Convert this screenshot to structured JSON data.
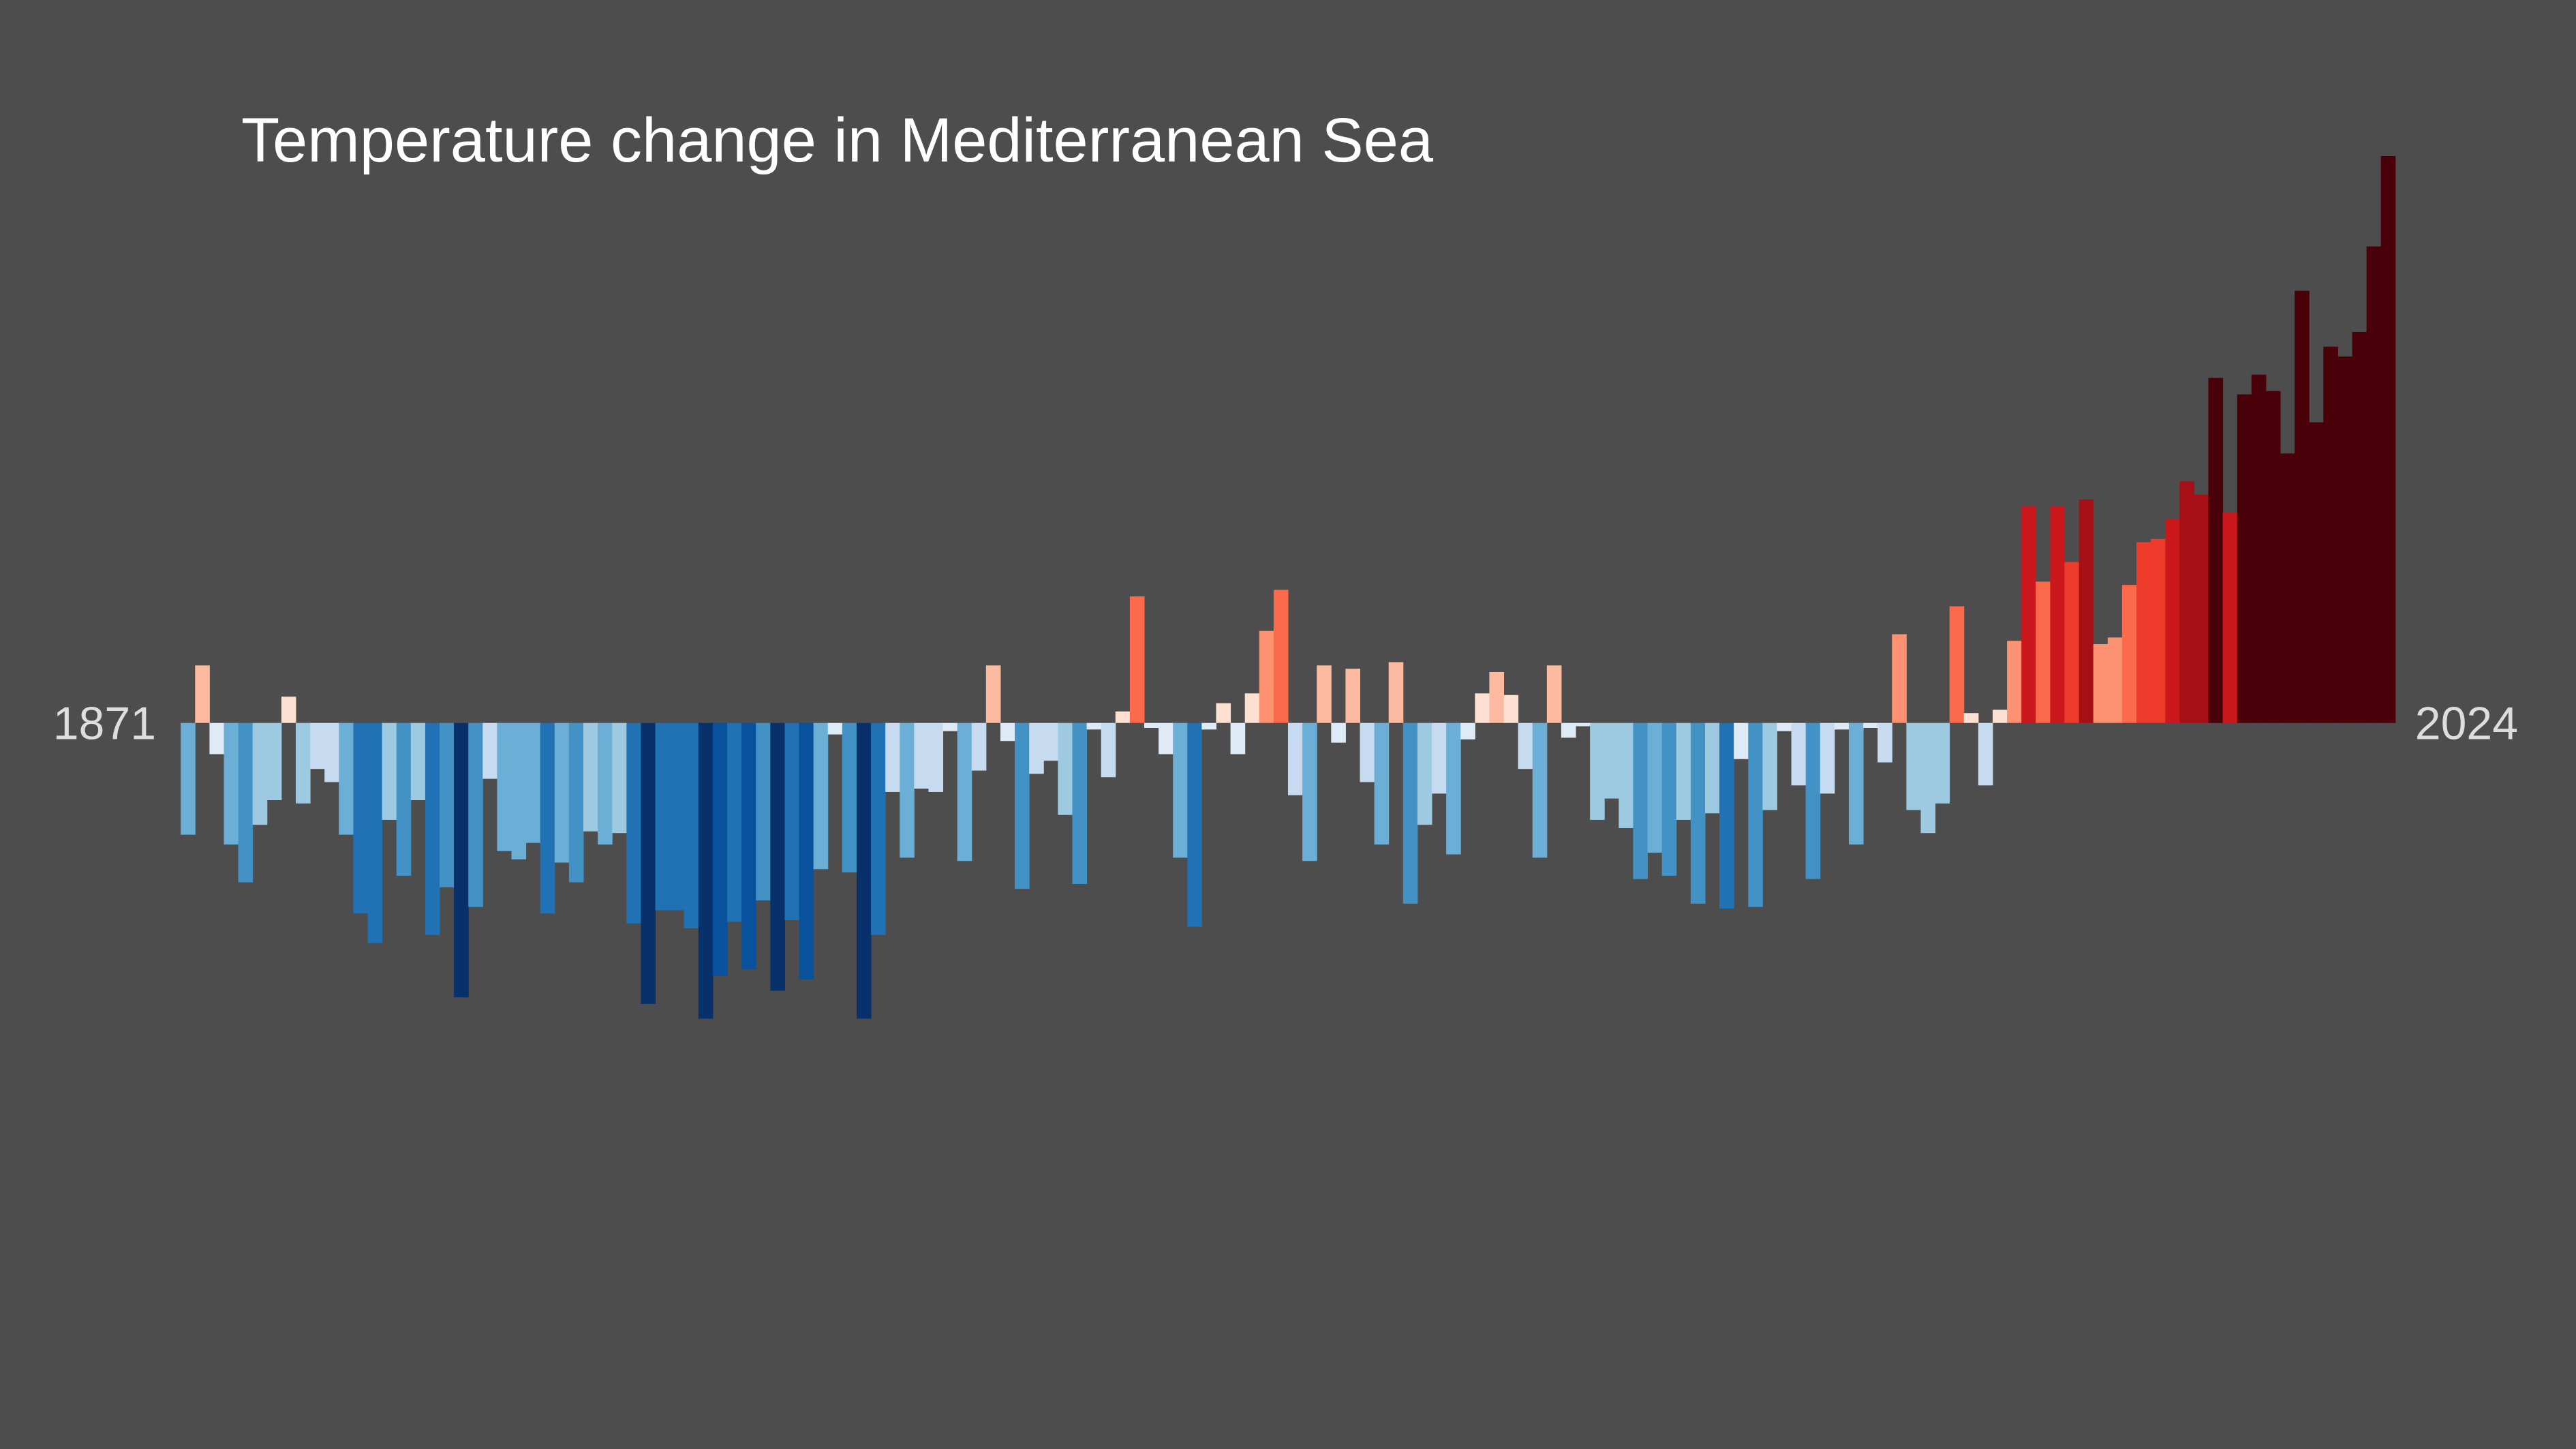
{
  "chart_data": {
    "type": "bar",
    "title": "Temperature change in Mediterranean Sea",
    "xlim": [
      1871,
      2024
    ],
    "xticks": [
      1871,
      2024
    ],
    "ylim": [
      -1.2,
      1.8
    ],
    "background": "#4d4d4d",
    "palette": [
      "#08306b",
      "#08519c",
      "#2171b5",
      "#4292c6",
      "#6baed6",
      "#9ecae1",
      "#c6dbef",
      "#deebf7",
      "#fee0d2",
      "#fcbba1",
      "#fc9272",
      "#fb6a4a",
      "#ef3b2c",
      "#cb181d",
      "#a50f15",
      "#4a0008"
    ],
    "values": [
      -0.34,
      0.175,
      -0.095,
      -0.37,
      -0.485,
      -0.31,
      -0.235,
      0.08,
      -0.245,
      -0.14,
      -0.18,
      -0.34,
      -0.58,
      -0.67,
      -0.295,
      -0.465,
      -0.235,
      -0.645,
      -0.5,
      -0.835,
      -0.56,
      -0.17,
      -0.39,
      -0.415,
      -0.365,
      -0.58,
      -0.425,
      -0.485,
      -0.33,
      -0.37,
      -0.335,
      -0.61,
      -0.855,
      -0.57,
      -0.57,
      -0.625,
      -0.9,
      -0.77,
      -0.605,
      -0.75,
      -0.54,
      -0.815,
      -0.6,
      -0.78,
      -0.445,
      -0.035,
      -0.455,
      -0.9,
      -0.645,
      -0.21,
      -0.41,
      -0.2,
      -0.21,
      -0.025,
      -0.42,
      -0.145,
      0.175,
      -0.055,
      -0.505,
      -0.155,
      -0.115,
      -0.28,
      -0.49,
      -0.02,
      -0.165,
      0.035,
      0.385,
      -0.015,
      -0.095,
      -0.41,
      -0.62,
      -0.02,
      0.06,
      -0.095,
      0.09,
      0.28,
      0.405,
      -0.22,
      -0.42,
      0.175,
      -0.06,
      0.165,
      -0.18,
      -0.37,
      0.185,
      -0.55,
      -0.31,
      -0.215,
      -0.4,
      -0.05,
      0.09,
      0.155,
      0.085,
      -0.14,
      -0.41,
      0.175,
      -0.045,
      -0.01,
      -0.295,
      -0.23,
      -0.32,
      -0.475,
      -0.395,
      -0.465,
      -0.295,
      -0.55,
      -0.275,
      -0.565,
      -0.11,
      -0.56,
      -0.265,
      -0.025,
      -0.19,
      -0.475,
      -0.215,
      -0.02,
      -0.37,
      -0.015,
      -0.12,
      0.27,
      -0.265,
      -0.335,
      -0.245,
      0.355,
      0.03,
      -0.19,
      0.04,
      0.25,
      0.66,
      0.43,
      0.66,
      0.49,
      0.68,
      0.24,
      0.26,
      0.42,
      0.55,
      0.56,
      0.62,
      0.735,
      0.695,
      1.05,
      0.64,
      1.0,
      1.06,
      1.01,
      0.82,
      1.315,
      0.915,
      1.145,
      1.115,
      1.19,
      1.45,
      1.725
    ]
  }
}
